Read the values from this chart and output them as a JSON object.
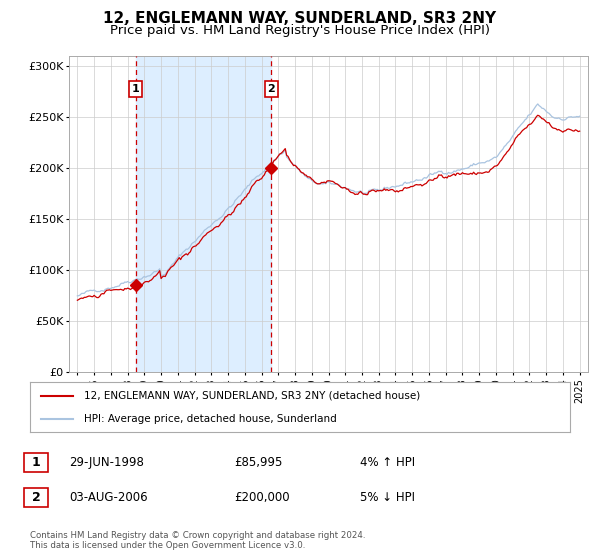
{
  "title": "12, ENGLEMANN WAY, SUNDERLAND, SR3 2NY",
  "subtitle": "Price paid vs. HM Land Registry's House Price Index (HPI)",
  "title_fontsize": 11,
  "subtitle_fontsize": 9.5,
  "hpi_line_color": "#aac4e0",
  "price_line_color": "#cc0000",
  "background_color": "#ffffff",
  "plot_bg_color": "#ffffff",
  "shaded_region_color": "#ddeeff",
  "grid_color": "#cccccc",
  "sale1_date_num": 1998.49,
  "sale1_price": 85995,
  "sale1_label": "1",
  "sale1_date_str": "29-JUN-1998",
  "sale1_price_str": "£85,995",
  "sale1_hpi_str": "4% ↑ HPI",
  "sale2_date_num": 2006.58,
  "sale2_price": 200000,
  "sale2_label": "2",
  "sale2_date_str": "03-AUG-2006",
  "sale2_price_str": "£200,000",
  "sale2_hpi_str": "5% ↓ HPI",
  "legend_property": "12, ENGLEMANN WAY, SUNDERLAND, SR3 2NY (detached house)",
  "legend_hpi": "HPI: Average price, detached house, Sunderland",
  "footer": "Contains HM Land Registry data © Crown copyright and database right 2024.\nThis data is licensed under the Open Government Licence v3.0.",
  "ylim": [
    0,
    310000
  ],
  "yticks": [
    0,
    50000,
    100000,
    150000,
    200000,
    250000,
    300000
  ],
  "ytick_labels": [
    "£0",
    "£50K",
    "£100K",
    "£150K",
    "£200K",
    "£250K",
    "£300K"
  ],
  "xmin": 1994.5,
  "xmax": 2025.5
}
